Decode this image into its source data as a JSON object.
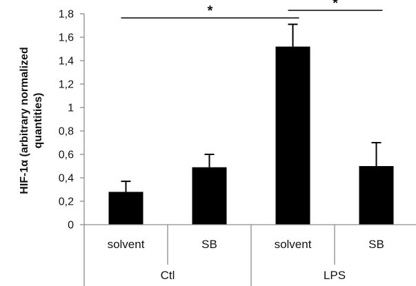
{
  "chart_data": {
    "type": "bar",
    "title": "",
    "ylabel_lines": [
      "HIF-1α (arbitrary normalized",
      "quantities)"
    ],
    "ylim": [
      0,
      1.8
    ],
    "y_ticks": [
      "0",
      "0,2",
      "0,4",
      "0,6",
      "0,8",
      "1",
      "1,2",
      "1,4",
      "1,6",
      "1,8"
    ],
    "grid": false,
    "legend": "none",
    "categories": [
      "solvent",
      "SB",
      "solvent",
      "SB"
    ],
    "groups": [
      {
        "label": "Ctl",
        "span": [
          0,
          1
        ]
      },
      {
        "label": "LPS",
        "span": [
          2,
          3
        ]
      }
    ],
    "values": [
      0.28,
      0.49,
      1.52,
      0.5
    ],
    "error_upper": [
      0.37,
      0.6,
      1.71,
      0.7
    ],
    "bar_color": "#000000",
    "significance": [
      {
        "from_index": 0,
        "to_index": 2,
        "label": "*"
      },
      {
        "from_index": 2,
        "to_index": 3,
        "label": "*"
      }
    ]
  }
}
